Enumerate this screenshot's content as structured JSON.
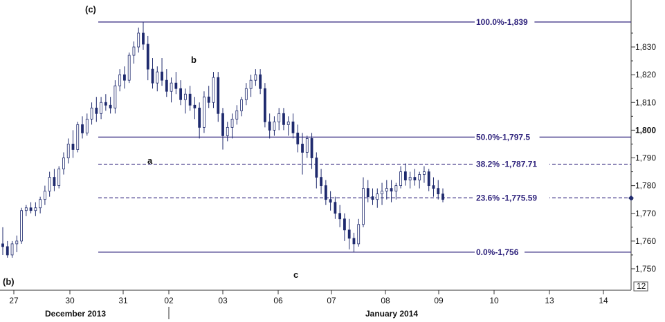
{
  "chart_data": {
    "type": "candlestick",
    "title": "",
    "xlabel": "",
    "ylabel": "",
    "ylim": [
      1745,
      1850
    ],
    "y_ticks": [
      1750,
      1760,
      1770,
      1780,
      1790,
      1800,
      1810,
      1820,
      1830
    ],
    "y_tick_labels": [
      "1,750",
      "1,760",
      "1,770",
      "1,780",
      "1,790",
      "1,800",
      "1,810",
      "1,820",
      "1,830"
    ],
    "x_ticks": [
      "27",
      "30",
      "31",
      "02",
      "03",
      "06",
      "07",
      "08",
      "09",
      "10",
      "13",
      "14"
    ],
    "months": [
      "December 2013",
      "January 2014"
    ],
    "fib_levels": [
      {
        "label": "100.0%-1,839",
        "value": 1839,
        "style": "solid"
      },
      {
        "label": "50.0%-1,797.5",
        "value": 1797.5,
        "style": "solid"
      },
      {
        "label": "38.2% -1,787.71",
        "value": 1787.71,
        "style": "dashed"
      },
      {
        "label": "23.6% -1,775.59",
        "value": 1775.59,
        "style": "dashed"
      },
      {
        "label": "0.0%-1,756",
        "value": 1756,
        "style": "solid"
      }
    ],
    "wave_labels": [
      "(c)",
      "b",
      "a",
      "c",
      "(b)"
    ],
    "last_price": 1775.5,
    "last_price_marker": "diamond",
    "axis_badge": "12",
    "series": [
      {
        "values": [
          [
            1759,
            1765,
            1755,
            1758
          ],
          [
            1758,
            1760,
            1754,
            1755
          ],
          [
            1755,
            1760,
            1754,
            1759
          ],
          [
            1759,
            1762,
            1756,
            1760
          ],
          [
            1760,
            1772,
            1759,
            1771
          ],
          [
            1771,
            1773,
            1769,
            1772
          ],
          [
            1772,
            1774,
            1770,
            1771
          ],
          [
            1771,
            1774,
            1769,
            1772
          ],
          [
            1772,
            1776,
            1770,
            1775
          ],
          [
            1775,
            1780,
            1773,
            1778
          ],
          [
            1778,
            1785,
            1776,
            1783
          ],
          [
            1783,
            1786,
            1778,
            1780
          ],
          [
            1780,
            1787,
            1779,
            1786
          ],
          [
            1786,
            1792,
            1784,
            1790
          ],
          [
            1790,
            1797,
            1788,
            1795
          ],
          [
            1795,
            1800,
            1790,
            1793
          ],
          [
            1793,
            1803,
            1792,
            1802
          ],
          [
            1802,
            1805,
            1797,
            1799
          ],
          [
            1799,
            1806,
            1798,
            1804
          ],
          [
            1804,
            1810,
            1802,
            1808
          ],
          [
            1808,
            1812,
            1803,
            1806
          ],
          [
            1806,
            1812,
            1804,
            1810
          ],
          [
            1810,
            1813,
            1807,
            1809
          ],
          [
            1809,
            1812,
            1806,
            1808
          ],
          [
            1808,
            1818,
            1806,
            1816
          ],
          [
            1816,
            1822,
            1814,
            1820
          ],
          [
            1820,
            1823,
            1815,
            1818
          ],
          [
            1818,
            1828,
            1817,
            1827
          ],
          [
            1827,
            1832,
            1824,
            1830
          ],
          [
            1830,
            1837,
            1828,
            1835
          ],
          [
            1835,
            1839,
            1829,
            1831
          ],
          [
            1831,
            1834,
            1818,
            1822
          ],
          [
            1822,
            1826,
            1815,
            1817
          ],
          [
            1817,
            1823,
            1814,
            1821
          ],
          [
            1821,
            1826,
            1816,
            1818
          ],
          [
            1818,
            1822,
            1812,
            1814
          ],
          [
            1814,
            1819,
            1810,
            1817
          ],
          [
            1817,
            1821,
            1813,
            1815
          ],
          [
            1815,
            1818,
            1809,
            1811
          ],
          [
            1811,
            1815,
            1806,
            1813
          ],
          [
            1813,
            1816,
            1807,
            1809
          ],
          [
            1809,
            1812,
            1804,
            1808
          ],
          [
            1808,
            1810,
            1797,
            1801
          ],
          [
            1801,
            1814,
            1799,
            1812
          ],
          [
            1812,
            1816,
            1808,
            1810
          ],
          [
            1810,
            1821,
            1808,
            1819
          ],
          [
            1819,
            1821,
            1803,
            1806
          ],
          [
            1806,
            1808,
            1793,
            1798
          ],
          [
            1798,
            1803,
            1796,
            1801
          ],
          [
            1801,
            1806,
            1797,
            1804
          ],
          [
            1804,
            1809,
            1802,
            1807
          ],
          [
            1807,
            1812,
            1805,
            1811
          ],
          [
            1811,
            1817,
            1809,
            1815
          ],
          [
            1815,
            1820,
            1812,
            1818
          ],
          [
            1818,
            1822,
            1816,
            1820
          ],
          [
            1820,
            1822,
            1813,
            1815
          ],
          [
            1815,
            1817,
            1801,
            1803
          ],
          [
            1803,
            1806,
            1797,
            1800
          ],
          [
            1800,
            1805,
            1798,
            1803
          ],
          [
            1803,
            1808,
            1800,
            1806
          ],
          [
            1806,
            1808,
            1800,
            1802
          ],
          [
            1802,
            1805,
            1798,
            1803
          ],
          [
            1803,
            1806,
            1797,
            1799
          ],
          [
            1799,
            1802,
            1792,
            1795
          ],
          [
            1795,
            1799,
            1784,
            1792
          ],
          [
            1792,
            1798,
            1790,
            1797
          ],
          [
            1797,
            1799,
            1786,
            1790
          ],
          [
            1790,
            1792,
            1779,
            1783
          ],
          [
            1783,
            1786,
            1777,
            1780
          ],
          [
            1780,
            1782,
            1773,
            1775
          ],
          [
            1775,
            1778,
            1771,
            1774
          ],
          [
            1774,
            1776,
            1768,
            1770
          ],
          [
            1770,
            1773,
            1765,
            1768
          ],
          [
            1768,
            1770,
            1760,
            1764
          ],
          [
            1764,
            1768,
            1757,
            1761
          ],
          [
            1761,
            1763,
            1756,
            1759
          ],
          [
            1759,
            1768,
            1758,
            1766
          ],
          [
            1766,
            1783,
            1765,
            1779
          ],
          [
            1779,
            1782,
            1774,
            1776
          ],
          [
            1776,
            1779,
            1773,
            1775
          ],
          [
            1775,
            1779,
            1772,
            1777
          ],
          [
            1777,
            1781,
            1773,
            1778
          ],
          [
            1778,
            1782,
            1775,
            1779
          ],
          [
            1779,
            1782,
            1774,
            1778
          ],
          [
            1778,
            1781,
            1775,
            1780
          ],
          [
            1780,
            1787,
            1779,
            1785
          ],
          [
            1785,
            1788,
            1780,
            1782
          ],
          [
            1782,
            1785,
            1779,
            1783
          ],
          [
            1783,
            1786,
            1780,
            1782
          ],
          [
            1782,
            1785,
            1779,
            1784
          ],
          [
            1784,
            1787,
            1781,
            1785
          ],
          [
            1785,
            1786,
            1778,
            1780
          ],
          [
            1780,
            1783,
            1776,
            1779
          ],
          [
            1779,
            1782,
            1775,
            1777
          ],
          [
            1777,
            1779,
            1774,
            1775
          ]
        ]
      }
    ]
  }
}
